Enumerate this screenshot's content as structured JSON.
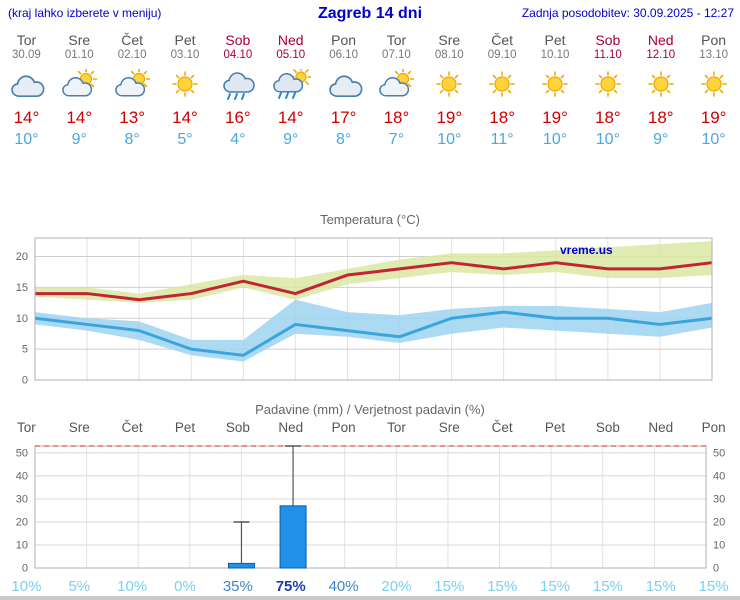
{
  "header": {
    "left_note": "(kraj lahko izberete v meniju)",
    "title": "Zagreb 14 dni",
    "updated": "Zadnja posodobitev: 30.09.2025 - 12:27"
  },
  "days": [
    {
      "name": "Tor",
      "date": "30.09",
      "weekend": false,
      "icon": "cloudy",
      "tmax": "14°",
      "tmin": "10°",
      "pop": "10%",
      "pop_level": "light"
    },
    {
      "name": "Sre",
      "date": "01.10",
      "weekend": false,
      "icon": "partly-cloudy",
      "tmax": "14°",
      "tmin": "9°",
      "pop": "5%",
      "pop_level": "light"
    },
    {
      "name": "Čet",
      "date": "02.10",
      "weekend": false,
      "icon": "partly-cloudy",
      "tmax": "13°",
      "tmin": "8°",
      "pop": "10%",
      "pop_level": "light"
    },
    {
      "name": "Pet",
      "date": "03.10",
      "weekend": false,
      "icon": "sunny",
      "tmax": "14°",
      "tmin": "5°",
      "pop": "0%",
      "pop_level": "light"
    },
    {
      "name": "Sob",
      "date": "04.10",
      "weekend": true,
      "icon": "rain",
      "tmax": "16°",
      "tmin": "4°",
      "pop": "35%",
      "pop_level": "medium"
    },
    {
      "name": "Ned",
      "date": "05.10",
      "weekend": true,
      "icon": "rain-sun",
      "tmax": "14°",
      "tmin": "9°",
      "pop": "75%",
      "pop_level": "strong"
    },
    {
      "name": "Pon",
      "date": "06.10",
      "weekend": false,
      "icon": "cloudy",
      "tmax": "17°",
      "tmin": "8°",
      "pop": "40%",
      "pop_level": "medium"
    },
    {
      "name": "Tor",
      "date": "07.10",
      "weekend": false,
      "icon": "partly-cloudy",
      "tmax": "18°",
      "tmin": "7°",
      "pop": "20%",
      "pop_level": "light"
    },
    {
      "name": "Sre",
      "date": "08.10",
      "weekend": false,
      "icon": "sunny",
      "tmax": "19°",
      "tmin": "10°",
      "pop": "15%",
      "pop_level": "light"
    },
    {
      "name": "Čet",
      "date": "09.10",
      "weekend": false,
      "icon": "sunny",
      "tmax": "18°",
      "tmin": "11°",
      "pop": "15%",
      "pop_level": "light"
    },
    {
      "name": "Pet",
      "date": "10.10",
      "weekend": false,
      "icon": "sunny",
      "tmax": "19°",
      "tmin": "10°",
      "pop": "15%",
      "pop_level": "light"
    },
    {
      "name": "Sob",
      "date": "11.10",
      "weekend": true,
      "icon": "sunny",
      "tmax": "18°",
      "tmin": "10°",
      "pop": "15%",
      "pop_level": "light"
    },
    {
      "name": "Ned",
      "date": "12.10",
      "weekend": true,
      "icon": "sunny",
      "tmax": "18°",
      "tmin": "9°",
      "pop": "15%",
      "pop_level": "light"
    },
    {
      "name": "Pon",
      "date": "13.10",
      "weekend": false,
      "icon": "sunny",
      "tmax": "19°",
      "tmin": "10°",
      "pop": "15%",
      "pop_level": "light"
    }
  ],
  "chart_data": [
    {
      "type": "line",
      "title": "Temperatura (°C)",
      "watermark": "vreme.us",
      "categories": [
        "Tor",
        "Sre",
        "Čet",
        "Pet",
        "Sob",
        "Ned",
        "Pon",
        "Tor",
        "Sre",
        "Čet",
        "Pet",
        "Sob",
        "Ned",
        "Pon"
      ],
      "series": [
        {
          "name": "temp-max",
          "values": [
            14,
            14,
            13,
            14,
            16,
            14,
            17,
            18,
            19,
            18,
            19,
            18,
            18,
            19
          ],
          "color": "#c22433"
        },
        {
          "name": "temp-min",
          "values": [
            10,
            9,
            8,
            5,
            4,
            9,
            8,
            7,
            10,
            11,
            10,
            10,
            9,
            10
          ],
          "color": "#3aa5dd"
        }
      ],
      "bands": [
        {
          "name": "temp-max-range",
          "upper": [
            15,
            15,
            14,
            15.5,
            17,
            16.5,
            18,
            19.5,
            20.5,
            20.5,
            21,
            21.5,
            22,
            22.5
          ],
          "lower": [
            13.5,
            13,
            12.5,
            13,
            15,
            13,
            15.5,
            16.5,
            17.5,
            17,
            17.5,
            16.5,
            16.5,
            17
          ],
          "color": "#d9e8a2"
        },
        {
          "name": "temp-min-range",
          "upper": [
            11,
            10,
            9.5,
            6.5,
            6.5,
            13,
            11,
            10.5,
            11.5,
            12,
            12,
            11.5,
            11,
            12.5
          ],
          "lower": [
            9,
            8,
            6.5,
            4,
            3,
            7.5,
            7,
            6,
            7.5,
            8.5,
            8,
            7.5,
            7,
            8.5
          ],
          "color": "#9ed4f0"
        }
      ],
      "ylim": [
        0,
        23
      ],
      "yticks": [
        0,
        5,
        10,
        15,
        20
      ],
      "grid": true,
      "legend": "none"
    },
    {
      "type": "bar",
      "title": "Padavine (mm) / Verjetnost padavin (%)",
      "categories": [
        "Tor",
        "Sre",
        "Čet",
        "Pet",
        "Sob",
        "Ned",
        "Pon",
        "Tor",
        "Sre",
        "Čet",
        "Pet",
        "Sob",
        "Ned",
        "Pon"
      ],
      "values": [
        0,
        0,
        0,
        0,
        2,
        27,
        0,
        0,
        0,
        0,
        0,
        0,
        0,
        0
      ],
      "whisker_max": [
        0,
        0,
        0,
        0,
        20,
        53,
        0,
        0,
        0,
        0,
        0,
        0,
        0,
        0
      ],
      "probabilities": [
        "10%",
        "5%",
        "10%",
        "0%",
        "35%",
        "75%",
        "40%",
        "20%",
        "15%",
        "15%",
        "15%",
        "15%",
        "15%",
        "15%"
      ],
      "ylim": [
        0,
        53
      ],
      "yticks": [
        0,
        10,
        20,
        30,
        40,
        50
      ],
      "bar_color": "#2090e8",
      "limit_line": 53,
      "grid": true,
      "legend": "none"
    }
  ],
  "colors": {
    "header_blue": "#0000cc",
    "weekend_red": "#aa0033",
    "temp_max_red": "#cc0000",
    "temp_min_blue": "#49a8e0",
    "pop_light": "#7ccfee",
    "pop_medium": "#3d85c8",
    "pop_strong": "#1c3fb0"
  }
}
